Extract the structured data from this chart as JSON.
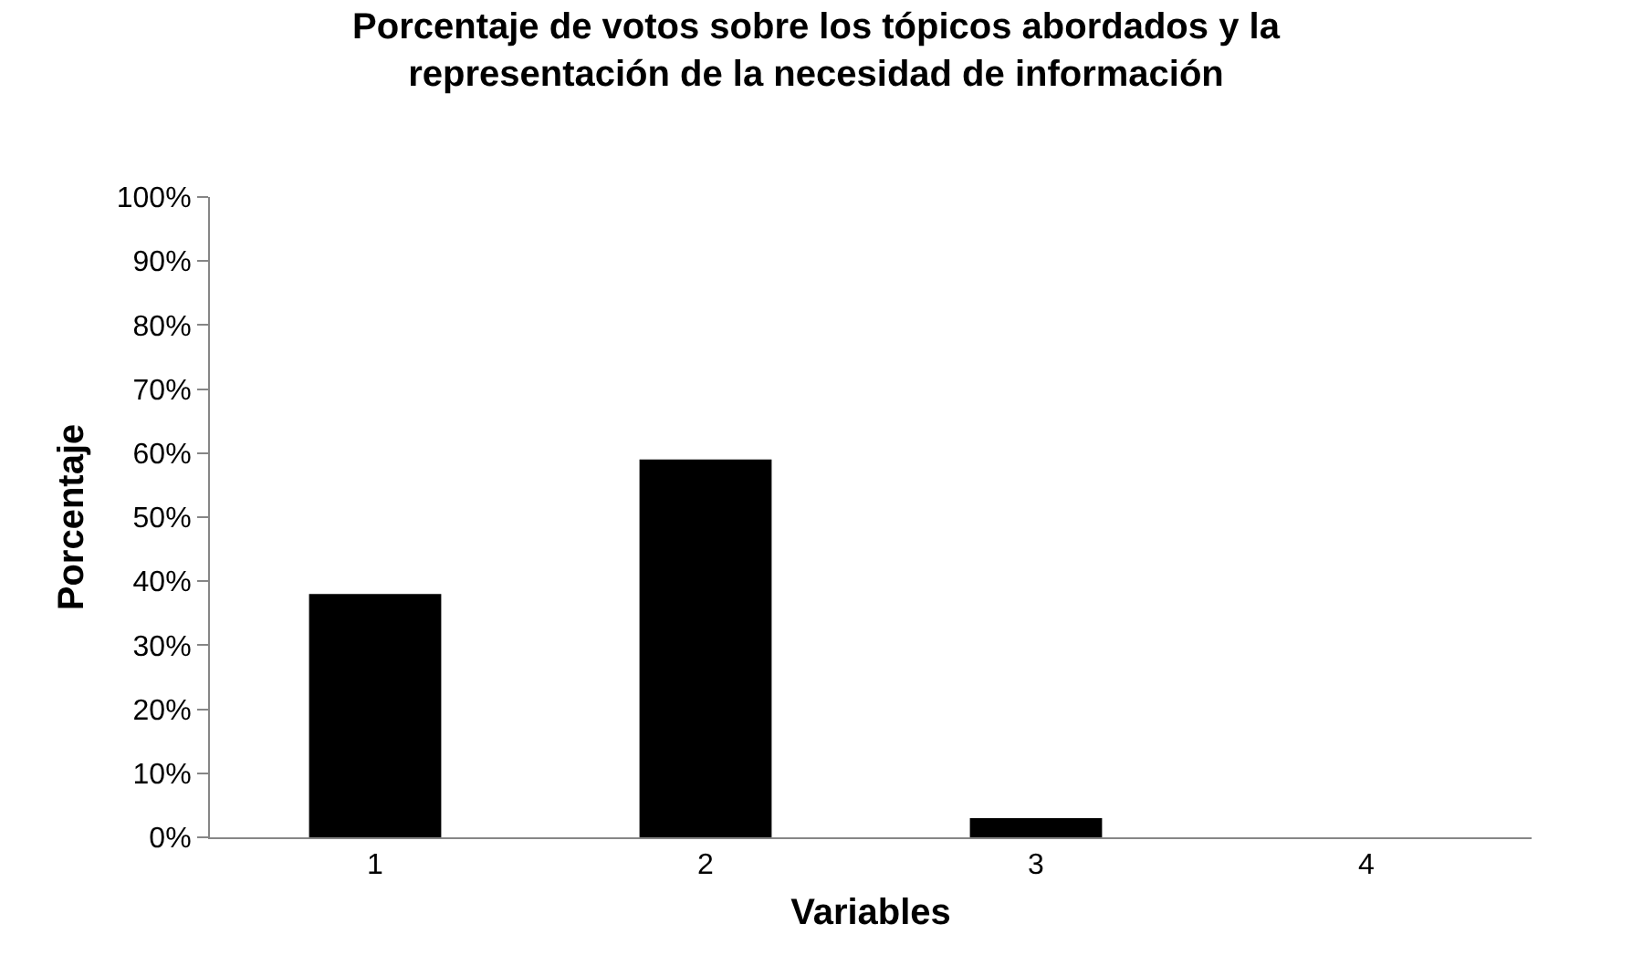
{
  "chart_data": {
    "type": "bar",
    "title": "Porcentaje de votos sobre los tópicos abordados y la representación de la necesidad de información",
    "xlabel": "Variables",
    "ylabel": "Porcentaje",
    "categories": [
      "1",
      "2",
      "3",
      "4"
    ],
    "values": [
      38,
      59,
      3,
      0
    ],
    "color": "#000000",
    "ylim": [
      0,
      100
    ],
    "yticks": [
      {
        "value": 0,
        "label": "0%"
      },
      {
        "value": 10,
        "label": "10%"
      },
      {
        "value": 20,
        "label": "20%"
      },
      {
        "value": 30,
        "label": "30%"
      },
      {
        "value": 40,
        "label": "40%"
      },
      {
        "value": 50,
        "label": "50%"
      },
      {
        "value": 60,
        "label": "60%"
      },
      {
        "value": 70,
        "label": "70%"
      },
      {
        "value": 80,
        "label": "80%"
      },
      {
        "value": 90,
        "label": "90%"
      },
      {
        "value": 100,
        "label": "100%"
      }
    ],
    "grid": false,
    "legend": false
  }
}
